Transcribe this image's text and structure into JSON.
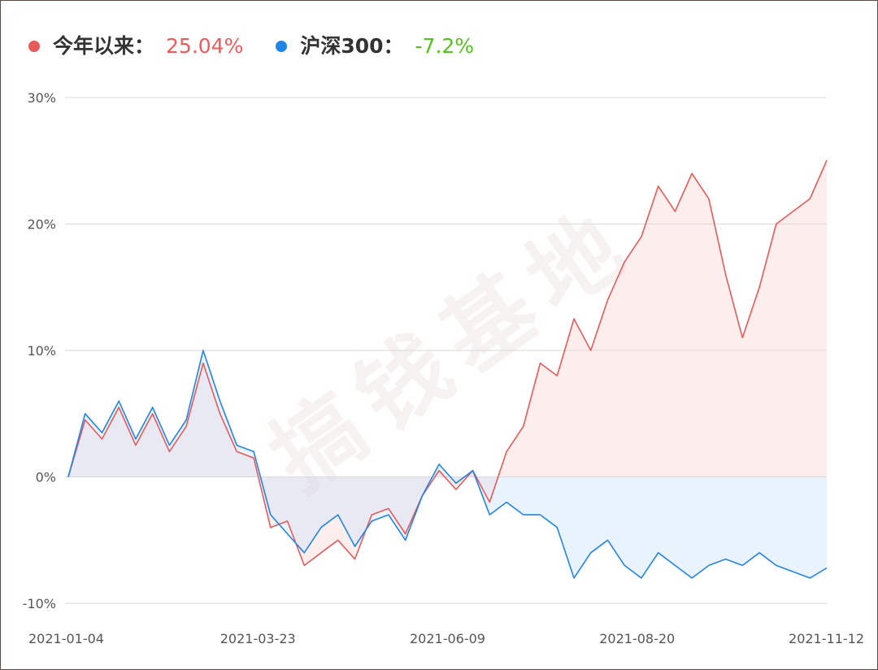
{
  "legend": {
    "portfolio": {
      "name": "今年以来：",
      "value": "25.04%"
    },
    "index": {
      "name": "沪深300：",
      "value": "-7.2%"
    }
  },
  "watermark": "搞钱基地",
  "colors": {
    "portfolio": "#e85a5a",
    "portfolio_fill": "rgba(250, 205, 205, 0.35)",
    "index": "#2185e8",
    "index_fill": "rgba(200, 225, 250, 0.40)",
    "positive_text": "#f05a5a",
    "negative_text": "#52c41a",
    "grid": "#d9d9d9",
    "tick": "#555555"
  },
  "chart_data": {
    "type": "area",
    "title": "",
    "xlabel": "",
    "ylabel": "",
    "ylim": [
      -10,
      30
    ],
    "yticks": [
      -10,
      0,
      10,
      20,
      30
    ],
    "ytick_labels": [
      "-10%",
      "0%",
      "10%",
      "20%",
      "30%"
    ],
    "xtick_labels": [
      "2021-01-04",
      "2021-03-23",
      "2021-06-09",
      "2021-08-20",
      "2021-11-12"
    ],
    "grid": true,
    "legend_position": "top-left",
    "x": [
      "2021-01-04",
      "2021-01-11",
      "2021-01-18",
      "2021-01-25",
      "2021-02-01",
      "2021-02-08",
      "2021-02-15",
      "2021-02-22",
      "2021-03-01",
      "2021-03-08",
      "2021-03-15",
      "2021-03-22",
      "2021-03-29",
      "2021-04-05",
      "2021-04-12",
      "2021-04-19",
      "2021-04-26",
      "2021-05-03",
      "2021-05-10",
      "2021-05-17",
      "2021-05-24",
      "2021-05-31",
      "2021-06-07",
      "2021-06-14",
      "2021-06-21",
      "2021-06-28",
      "2021-07-05",
      "2021-07-12",
      "2021-07-19",
      "2021-07-26",
      "2021-08-02",
      "2021-08-09",
      "2021-08-16",
      "2021-08-23",
      "2021-08-30",
      "2021-09-06",
      "2021-09-13",
      "2021-09-20",
      "2021-09-27",
      "2021-10-04",
      "2021-10-11",
      "2021-10-18",
      "2021-10-25",
      "2021-11-01",
      "2021-11-08",
      "2021-11-12"
    ],
    "series": [
      {
        "values": [
          0,
          4.5,
          3,
          5.5,
          2.5,
          5,
          2,
          4,
          9,
          5,
          2,
          1.5,
          -4,
          -3.5,
          -7,
          -6,
          -5,
          -6.5,
          -3,
          -2.5,
          -4.5,
          -1.5,
          0.5,
          -1,
          0.5,
          -2,
          2,
          4,
          9,
          8,
          12.5,
          10,
          14,
          17,
          19,
          23,
          21,
          24,
          22,
          16,
          11,
          15,
          20,
          21,
          22,
          25.04
        ]
      },
      {
        "values": [
          0,
          5,
          3.5,
          6,
          3,
          5.5,
          2.5,
          4.5,
          10,
          6,
          2.5,
          2,
          -3,
          -4.5,
          -6,
          -4,
          -3,
          -5.5,
          -3.5,
          -3,
          -5,
          -1.5,
          1,
          -0.5,
          0.5,
          -3,
          -2,
          -3,
          -3,
          -4,
          -8,
          -6,
          -5,
          -7,
          -8,
          -6,
          -7,
          -8,
          -7,
          -6.5,
          -7,
          -6,
          -7,
          -7.5,
          -8,
          -7.2
        ]
      }
    ]
  }
}
